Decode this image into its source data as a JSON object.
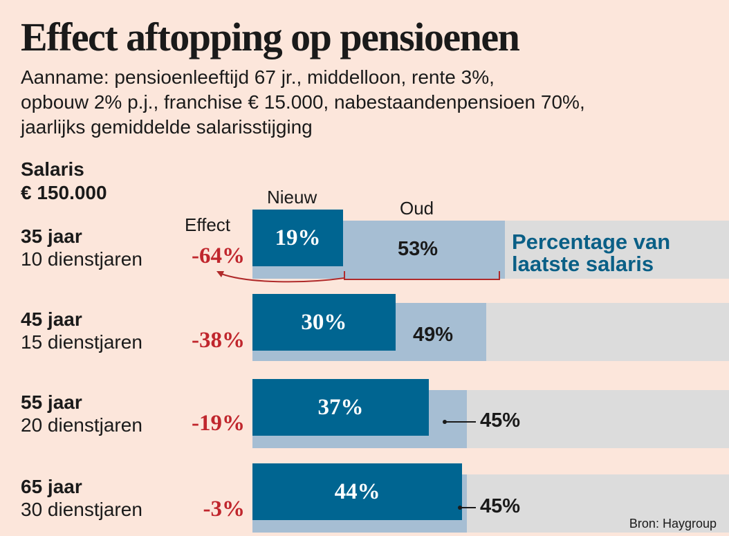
{
  "title": "Effect aftopping op pensioenen",
  "subtitle_lines": [
    "Aanname: pensioenleeftijd 67 jr., middelloon, rente 3%,",
    "opbouw 2% p.j., franchise € 15.000, nabestaandenpensioen 70%,",
    "jaarlijks gemiddelde salarisstijging"
  ],
  "salaris_label": "Salaris",
  "salaris_value": "€ 150.000",
  "effect_label": "Effect",
  "legend": {
    "nieuw": "Nieuw",
    "oud": "Oud"
  },
  "unit_label_lines": [
    "Percentage van",
    "laatste salaris"
  ],
  "source": "Bron: Haygroup",
  "colors": {
    "nieuw": "#006591",
    "oud": "#a6bed3",
    "background_bar": "#dcdcdc",
    "effect": "#c0262d",
    "unit_label": "#0a5f86"
  },
  "chart_data": {
    "type": "bar",
    "orientation": "horizontal",
    "max_percent": 100,
    "categories": [
      "35 jaar",
      "45 jaar",
      "55 jaar",
      "65 jaar"
    ],
    "sublabels": [
      "10 dienstjaren",
      "15 dienstjaren",
      "20 dienstjaren",
      "30 dienstjaren"
    ],
    "series": [
      {
        "name": "Nieuw",
        "values": [
          19,
          30,
          37,
          44
        ],
        "labels": [
          "19%",
          "30%",
          "37%",
          "44%"
        ]
      },
      {
        "name": "Oud",
        "values": [
          53,
          49,
          45,
          45
        ],
        "labels": [
          "53%",
          "49%",
          "45%",
          "45%"
        ]
      }
    ],
    "effect": [
      "-64%",
      "-38%",
      "-19%",
      "-3%"
    ]
  }
}
